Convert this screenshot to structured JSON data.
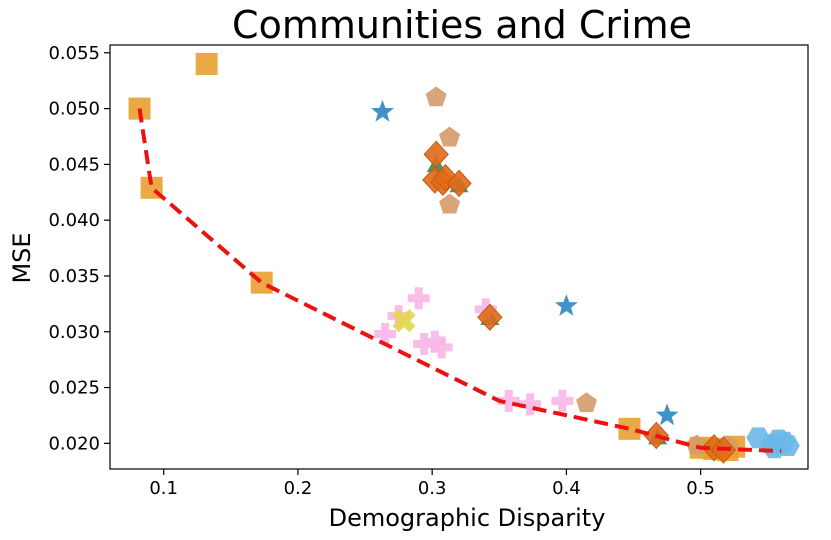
{
  "chart_data": {
    "type": "scatter",
    "title": "Communities and Crime",
    "xlabel": "Demographic Disparity",
    "ylabel": "MSE",
    "xlim": [
      0.06,
      0.58
    ],
    "ylim": [
      0.0177,
      0.0557
    ],
    "x_ticks": [
      0.1,
      0.2,
      0.3,
      0.4,
      0.5
    ],
    "x_tick_labels": [
      "0.1",
      "0.2",
      "0.3",
      "0.4",
      "0.5"
    ],
    "y_ticks": [
      0.02,
      0.025,
      0.03,
      0.035,
      0.04,
      0.045,
      0.05,
      0.055
    ],
    "y_tick_labels": [
      "0.020",
      "0.025",
      "0.030",
      "0.035",
      "0.040",
      "0.045",
      "0.050",
      "0.055"
    ],
    "grid": false,
    "frontier": {
      "name": "pareto-front",
      "color": "#ee1111",
      "style": "dashed",
      "points": [
        [
          0.082,
          0.05
        ],
        [
          0.091,
          0.0429
        ],
        [
          0.173,
          0.0344
        ],
        [
          0.35,
          0.0238
        ],
        [
          0.447,
          0.0213
        ],
        [
          0.5,
          0.0196
        ],
        [
          0.56,
          0.0193
        ]
      ]
    },
    "series": [
      {
        "name": "squares",
        "marker": "square",
        "color": "#e8a030",
        "points": [
          [
            0.132,
            0.054
          ],
          [
            0.082,
            0.05
          ],
          [
            0.091,
            0.0429
          ],
          [
            0.173,
            0.0344
          ],
          [
            0.447,
            0.0213
          ],
          [
            0.5,
            0.0196
          ],
          [
            0.51,
            0.0195
          ],
          [
            0.52,
            0.0194
          ],
          [
            0.525,
            0.0197
          ]
        ]
      },
      {
        "name": "pentagons",
        "marker": "pentagon",
        "color": "#d49a6a",
        "points": [
          [
            0.303,
            0.051
          ],
          [
            0.313,
            0.0474
          ],
          [
            0.313,
            0.0414
          ],
          [
            0.415,
            0.0236
          ],
          [
            0.497,
            0.0198
          ],
          [
            0.52,
            0.0197
          ]
        ]
      },
      {
        "name": "stars",
        "marker": "star",
        "color": "#2b86c4",
        "points": [
          [
            0.263,
            0.0497
          ],
          [
            0.4,
            0.0323
          ],
          [
            0.475,
            0.0225
          ]
        ]
      },
      {
        "name": "triangles",
        "marker": "triangle",
        "color": "#2e8b57",
        "points": [
          [
            0.303,
            0.0448
          ],
          [
            0.32,
            0.043
          ],
          [
            0.343,
            0.0311
          ],
          [
            0.468,
            0.0204
          ]
        ]
      },
      {
        "name": "plus",
        "marker": "plus",
        "color": "#f7b6e6",
        "points": [
          [
            0.265,
            0.0298
          ],
          [
            0.275,
            0.0314
          ],
          [
            0.29,
            0.033
          ],
          [
            0.294,
            0.0289
          ],
          [
            0.302,
            0.0291
          ],
          [
            0.307,
            0.0286
          ],
          [
            0.34,
            0.032
          ],
          [
            0.357,
            0.0238
          ],
          [
            0.373,
            0.0235
          ],
          [
            0.397,
            0.0238
          ]
        ]
      },
      {
        "name": "xs",
        "marker": "x",
        "color": "#e0d84a",
        "points": [
          [
            0.279,
            0.031
          ]
        ]
      },
      {
        "name": "diamonds",
        "marker": "diamond",
        "color": "#e06a1a",
        "points": [
          [
            0.303,
            0.0459
          ],
          [
            0.302,
            0.0436
          ],
          [
            0.308,
            0.0434
          ],
          [
            0.31,
            0.0438
          ],
          [
            0.32,
            0.0433
          ],
          [
            0.343,
            0.0313
          ],
          [
            0.467,
            0.0207
          ],
          [
            0.51,
            0.0196
          ],
          [
            0.517,
            0.0194
          ]
        ]
      },
      {
        "name": "hexagons",
        "marker": "hexagon",
        "color": "#6bb8e8",
        "points": [
          [
            0.543,
            0.0205
          ],
          [
            0.553,
            0.0199
          ],
          [
            0.558,
            0.0203
          ],
          [
            0.562,
            0.0201
          ],
          [
            0.565,
            0.0198
          ],
          [
            0.555,
            0.0196
          ]
        ]
      }
    ]
  }
}
